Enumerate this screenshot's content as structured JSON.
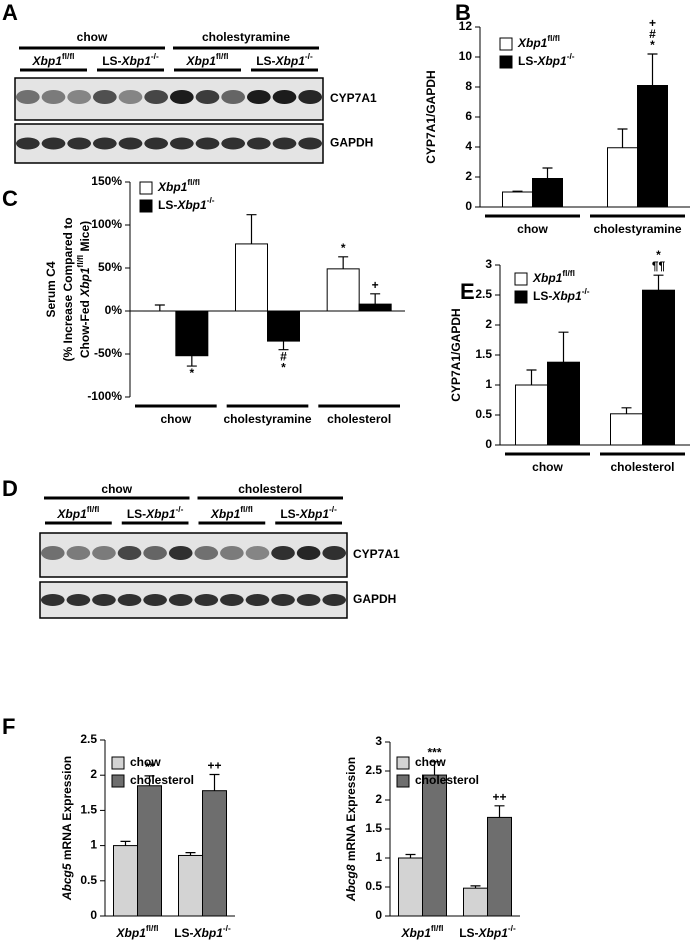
{
  "blots": [
    {
      "panel": "A",
      "groups": [
        "chow",
        "cholestyramine"
      ],
      "genotypes": [
        "Xbp1fl/fl",
        "LS-Xbp1-/-",
        "Xbp1fl/fl",
        "LS-Xbp1-/-"
      ],
      "rows": [
        "CYP7A1",
        "GAPDH"
      ]
    },
    {
      "panel": "D",
      "groups": [
        "chow",
        "cholesterol"
      ],
      "genotypes": [
        "Xbp1fl/fl",
        "LS-Xbp1-/-",
        "Xbp1fl/fl",
        "LS-Xbp1-/-"
      ],
      "rows": [
        "CYP7A1",
        "GAPDH"
      ]
    }
  ],
  "chart_data": [
    {
      "type": "bar",
      "panel": "B",
      "ylabel": [
        "CYP7A1/GAPDH"
      ],
      "categories": [
        "chow",
        "cholestyramine"
      ],
      "series": [
        {
          "name": "Xbp1fl/fl",
          "color": "#ffffff",
          "values": [
            1.0,
            3.95
          ],
          "errors": [
            0.05,
            1.25
          ],
          "annotations": [
            null,
            null
          ]
        },
        {
          "name": "LS-Xbp1-/-",
          "color": "#000000",
          "values": [
            1.9,
            8.1
          ],
          "errors": [
            0.7,
            2.1
          ],
          "annotations": [
            null,
            [
              "+",
              "#",
              "*"
            ]
          ]
        }
      ],
      "ylim": [
        0,
        12
      ],
      "yticks": [
        0,
        2,
        4,
        6,
        8,
        10,
        12
      ],
      "legend": "top-left"
    },
    {
      "type": "bar",
      "panel": "C",
      "ylabel": [
        "Serum C4",
        "(% Increase Compared to",
        "Chow-Fed Xbp1fl/fl Mice)"
      ],
      "categories": [
        "chow",
        "cholestyramine",
        "cholesterol"
      ],
      "series": [
        {
          "name": "Xbp1fl/fl",
          "color": "#ffffff",
          "values": [
            0,
            78,
            49
          ],
          "errors": [
            7,
            34,
            14
          ],
          "annotations": [
            null,
            null,
            [
              "*"
            ]
          ]
        },
        {
          "name": "LS-Xbp1-/-",
          "color": "#000000",
          "values": [
            -52,
            -35,
            8
          ],
          "errors": [
            12,
            10,
            12
          ],
          "annotations": [
            [
              "*"
            ],
            [
              "#",
              "*"
            ],
            [
              "+"
            ]
          ]
        }
      ],
      "ylim": [
        -100,
        150
      ],
      "yticks": [
        {
          "value": -100,
          "label": "-100%"
        },
        {
          "value": -50,
          "label": "-50%"
        },
        {
          "value": 0,
          "label": "0%"
        },
        {
          "value": 50,
          "label": "50%"
        },
        {
          "value": 100,
          "label": "100%"
        },
        {
          "value": 150,
          "label": "150%"
        }
      ],
      "legend": "top-left"
    },
    {
      "type": "bar",
      "panel": "E",
      "ylabel": [
        "CYP7A1/GAPDH"
      ],
      "categories": [
        "chow",
        "cholesterol"
      ],
      "series": [
        {
          "name": "Xbp1fl/fl",
          "color": "#ffffff",
          "values": [
            1.0,
            0.52
          ],
          "errors": [
            0.25,
            0.1
          ],
          "annotations": [
            null,
            null
          ]
        },
        {
          "name": "LS-Xbp1-/-",
          "color": "#000000",
          "values": [
            1.38,
            2.58
          ],
          "errors": [
            0.5,
            0.25
          ],
          "annotations": [
            null,
            [
              "*",
              "¶¶"
            ]
          ]
        }
      ],
      "ylim": [
        0,
        3
      ],
      "yticks": [
        0,
        0.5,
        1,
        1.5,
        2,
        2.5,
        3
      ],
      "legend": "top-left"
    },
    {
      "type": "bar",
      "panel": "F",
      "ylabel": [
        "Abcg5 mRNA Expression"
      ],
      "categories": [
        "Xbp1fl/fl",
        "LS-Xbp1-/-"
      ],
      "series": [
        {
          "name": "chow",
          "color": "#d3d3d3",
          "values": [
            1.0,
            0.86
          ],
          "errors": [
            0.06,
            0.04
          ],
          "annotations": [
            null,
            null
          ]
        },
        {
          "name": "cholesterol",
          "color": "#6e6e6e",
          "values": [
            1.85,
            1.78
          ],
          "errors": [
            0.14,
            0.23
          ],
          "annotations": [
            [
              "**"
            ],
            [
              "++"
            ]
          ]
        }
      ],
      "ylim": [
        0,
        2.5
      ],
      "yticks": [
        0,
        0.5,
        1,
        1.5,
        2,
        2.5
      ],
      "legend": "top-left"
    },
    {
      "type": "bar",
      "ylabel": [
        "Abcg8 mRNA Expression"
      ],
      "categories": [
        "Xbp1fl/fl",
        "LS-Xbp1-/-"
      ],
      "series": [
        {
          "name": "chow",
          "color": "#d3d3d3",
          "values": [
            1.0,
            0.48
          ],
          "errors": [
            0.06,
            0.04
          ],
          "annotations": [
            null,
            null
          ]
        },
        {
          "name": "cholesterol",
          "color": "#6e6e6e",
          "values": [
            2.43,
            1.7
          ],
          "errors": [
            0.23,
            0.2
          ],
          "annotations": [
            [
              "***"
            ],
            [
              "++"
            ]
          ]
        }
      ],
      "ylim": [
        0,
        3
      ],
      "yticks": [
        0,
        0.5,
        1,
        1.5,
        2,
        2.5,
        3
      ],
      "legend": "top-left"
    }
  ]
}
